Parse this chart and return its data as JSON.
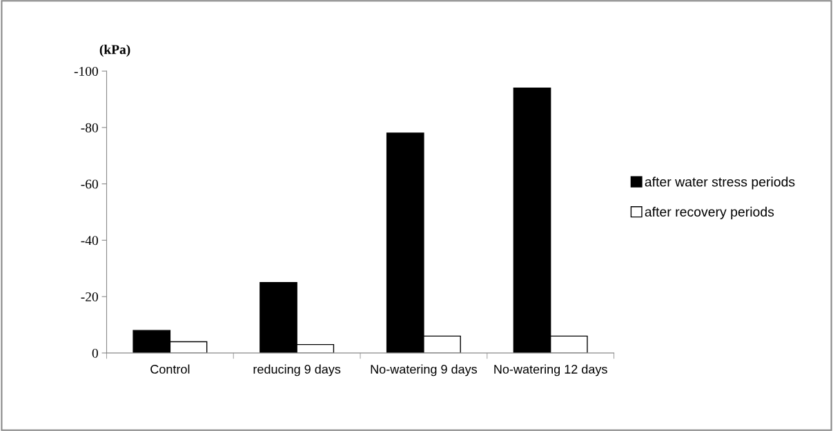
{
  "chart_data": {
    "type": "bar",
    "ylabel": "(kPa)",
    "categories": [
      "Control",
      "reducing 9 days",
      "No-watering 9 days",
      "No-watering 12 days"
    ],
    "series": [
      {
        "name": "after water stress periods",
        "color": "#000000",
        "values": [
          -8,
          -25,
          -78,
          -94
        ]
      },
      {
        "name": "after recovery periods",
        "color": "#ffffff",
        "values": [
          -4,
          -3,
          -6,
          -6
        ]
      }
    ],
    "ylim": [
      0,
      -100
    ],
    "yticks": [
      {
        "value": 0,
        "label": "0"
      },
      {
        "value": -20,
        "label": "-20"
      },
      {
        "value": -40,
        "label": "-40"
      },
      {
        "value": -60,
        "label": "-60"
      },
      {
        "value": -80,
        "label": "-80"
      },
      {
        "value": -100,
        "label": "-100"
      }
    ],
    "grid": false,
    "legend": "right"
  }
}
